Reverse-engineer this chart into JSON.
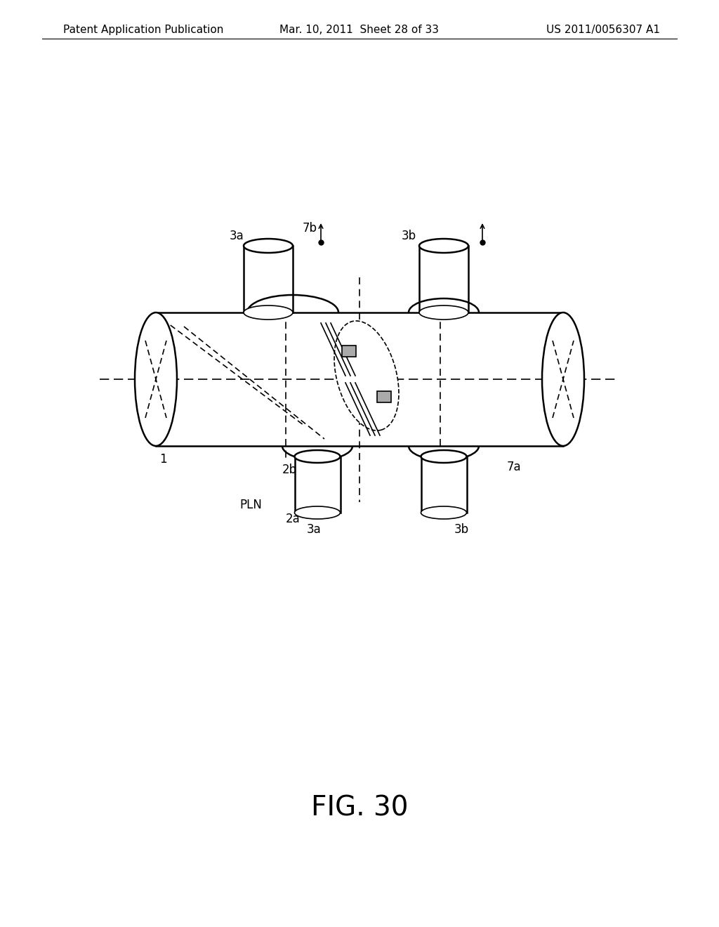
{
  "title": "FIG. 30",
  "header_left": "Patent Application Publication",
  "header_mid": "Mar. 10, 2011  Sheet 28 of 33",
  "header_right": "US 2011/0056307 A1",
  "bg_color": "#ffffff",
  "line_color": "#000000",
  "dashed_color": "#555555",
  "gray_color": "#888888",
  "fig_title_fontsize": 28,
  "header_fontsize": 11,
  "label_fontsize": 12
}
